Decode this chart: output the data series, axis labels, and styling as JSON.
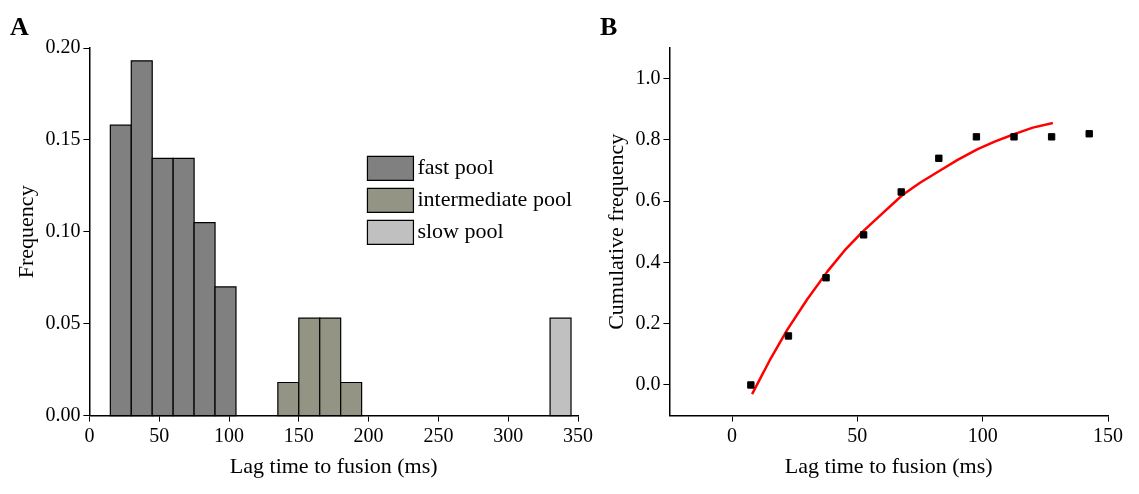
{
  "chart_data": [
    {
      "type": "histogram",
      "title": "A",
      "xlabel": "Lag time to fusion (ms)",
      "ylabel": "Frequency",
      "xlim": [
        0,
        350
      ],
      "xticks": [
        0,
        50,
        100,
        150,
        200,
        250,
        300,
        350
      ],
      "ylim": [
        0,
        0.2
      ],
      "yticks": [
        {
          "value": 0,
          "label": "0.00"
        },
        0.05,
        {
          "value": 0.1,
          "label": "0.10"
        },
        0.15,
        {
          "value": 0.2,
          "label": "0.20"
        }
      ],
      "grid": false,
      "legend": "right",
      "bins": [
        15,
        30,
        45,
        60,
        75,
        90,
        105,
        120,
        135,
        150,
        165,
        180,
        195,
        210,
        225,
        240,
        255,
        270,
        285,
        300,
        315,
        330,
        345
      ],
      "series": [
        {
          "name": "fast pool",
          "color": "#808080",
          "values": [
            0.158,
            0.193,
            0.14,
            0.14,
            0.105,
            0.07,
            null,
            null,
            null,
            null,
            null,
            null,
            null,
            null,
            null,
            null,
            null,
            null,
            null,
            null,
            null,
            null
          ]
        },
        {
          "name": "intermediate pool",
          "color": "#939483",
          "values": [
            null,
            null,
            null,
            null,
            null,
            null,
            null,
            null,
            0.018,
            0.053,
            0.053,
            0.018,
            null,
            null,
            null,
            null,
            null,
            null,
            null,
            null,
            null,
            null
          ]
        },
        {
          "name": "slow pool",
          "color": "#c0c0c0",
          "values": [
            null,
            null,
            null,
            null,
            null,
            null,
            null,
            null,
            null,
            null,
            null,
            null,
            null,
            null,
            null,
            null,
            null,
            null,
            null,
            null,
            null,
            0.053
          ]
        }
      ]
    },
    {
      "type": "scatter",
      "title": "B",
      "xlabel": "Lag time to fusion (ms)",
      "ylabel": "Cumulative frequency",
      "xlim": [
        -25,
        150
      ],
      "xticks": [
        0,
        50,
        100,
        150
      ],
      "ylim": [
        -0.1,
        1.1
      ],
      "yticks": [
        {
          "value": 0,
          "label": "0.0"
        },
        0.2,
        0.4,
        0.6,
        0.8,
        {
          "value": 1,
          "label": "1.0"
        }
      ],
      "grid": false,
      "marker": "square",
      "series": [
        {
          "color": "#000000",
          "x": [
            7.5,
            22.5,
            37.5,
            52.5,
            67.5,
            82.5,
            97.5,
            112.5,
            127.5,
            142.5
          ],
          "values": [
            0.0,
            0.16,
            0.35,
            0.49,
            0.63,
            0.74,
            0.81,
            0.81,
            0.81,
            0.82
          ]
        },
        {
          "type": "line",
          "marker": "none",
          "color": "#ff0000",
          "x": [
            8,
            15,
            22,
            30,
            38,
            45,
            52,
            60,
            68,
            75,
            83,
            90,
            98,
            105,
            113,
            120,
            128
          ],
          "values": [
            -0.03,
            0.08,
            0.18,
            0.28,
            0.37,
            0.44,
            0.5,
            0.56,
            0.62,
            0.66,
            0.7,
            0.735,
            0.77,
            0.795,
            0.82,
            0.84,
            0.855
          ]
        }
      ]
    }
  ]
}
